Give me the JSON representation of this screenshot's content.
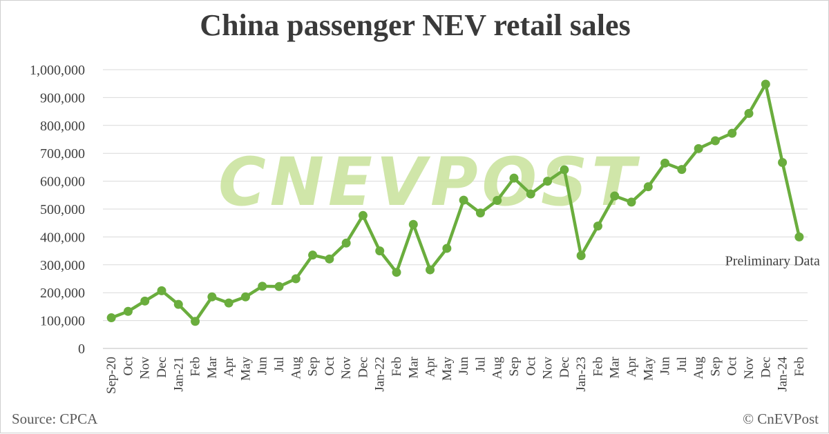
{
  "title": "China passenger NEV retail sales",
  "source": "Source: CPCA",
  "copyright": "© CnEVPost",
  "watermark": "CNEVPOST",
  "colors": {
    "line": "#6aad3d",
    "marker": "#6aad3d",
    "grid": "#d9d9d9",
    "watermark": "#c8e29a"
  },
  "chart_data": {
    "type": "line",
    "title": "China passenger NEV retail sales",
    "xlabel": "",
    "ylabel": "",
    "ylim": [
      0,
      1000000
    ],
    "y_ticks": [
      "0",
      "100,000",
      "200,000",
      "300,000",
      "400,000",
      "500,000",
      "600,000",
      "700,000",
      "800,000",
      "900,000",
      "1,000,000"
    ],
    "y_tick_values": [
      0,
      100000,
      200000,
      300000,
      400000,
      500000,
      600000,
      700000,
      800000,
      900000,
      1000000
    ],
    "grid": true,
    "categories": [
      "Sep-20",
      "Oct",
      "Nov",
      "Dec",
      "Jan-21",
      "Feb",
      "Mar",
      "Apr",
      "May",
      "Jun",
      "Jul",
      "Aug",
      "Sep",
      "Oct",
      "Nov",
      "Dec",
      "Jan-22",
      "Feb",
      "Mar",
      "Apr",
      "May",
      "Jun",
      "Jul",
      "Aug",
      "Sep",
      "Oct",
      "Nov",
      "Dec",
      "Jan-23",
      "Feb",
      "Mar",
      "Apr",
      "May",
      "Jun",
      "Jul",
      "Aug",
      "Sep",
      "Oct",
      "Nov",
      "Dec",
      "Jan-24",
      "Feb"
    ],
    "series": [
      {
        "values": [
          110000,
          133000,
          170000,
          207000,
          158000,
          97000,
          185000,
          163000,
          185000,
          223000,
          222000,
          250000,
          335000,
          321000,
          378000,
          477000,
          350000,
          273000,
          445000,
          282000,
          359000,
          532000,
          486000,
          531000,
          611000,
          554000,
          600000,
          641000,
          333000,
          439000,
          547000,
          525000,
          580000,
          665000,
          642000,
          717000,
          745000,
          772000,
          843000,
          948000,
          667000,
          400000
        ]
      }
    ],
    "annotations": [
      {
        "category": "Feb",
        "index": 41,
        "text": "Preliminary Data"
      }
    ]
  }
}
